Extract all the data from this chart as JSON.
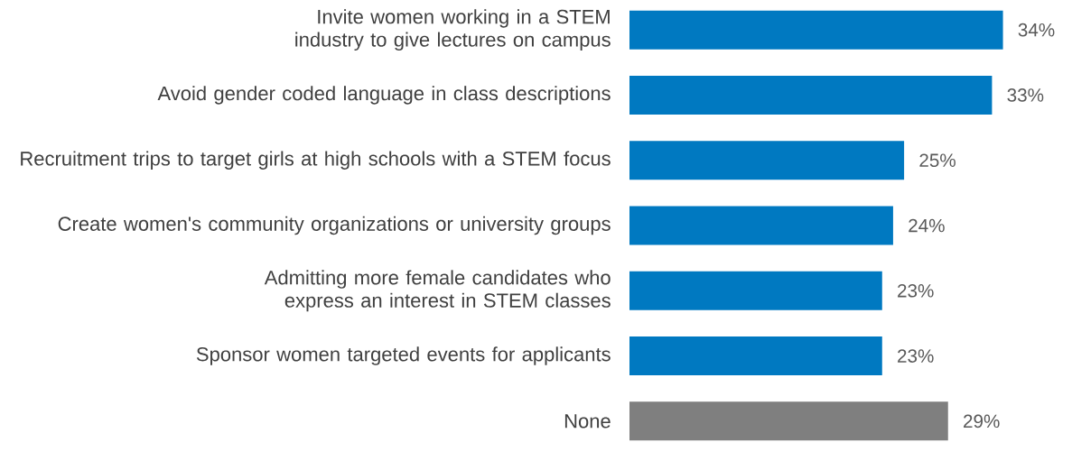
{
  "chart_data": {
    "type": "bar",
    "orientation": "horizontal",
    "categories": [
      "Invite women working in a STEM industry to give lectures on campus",
      "Avoid gender coded language in class descriptions",
      "Recruitment trips to target girls at high schools with a STEM focus",
      "Create women's community organizations or university groups",
      "Admitting more female  candidates who express an interest in STEM classes",
      "Sponsor women targeted events for applicants",
      "None"
    ],
    "values": [
      34,
      33,
      25,
      24,
      23,
      23,
      29
    ],
    "colors": [
      "#0079c1",
      "#0079c1",
      "#0079c1",
      "#0079c1",
      "#0079c1",
      "#0079c1",
      "#7f7f7f"
    ],
    "value_labels": [
      "34%",
      "33%",
      "25%",
      "24%",
      "23%",
      "23%",
      "29%"
    ]
  }
}
